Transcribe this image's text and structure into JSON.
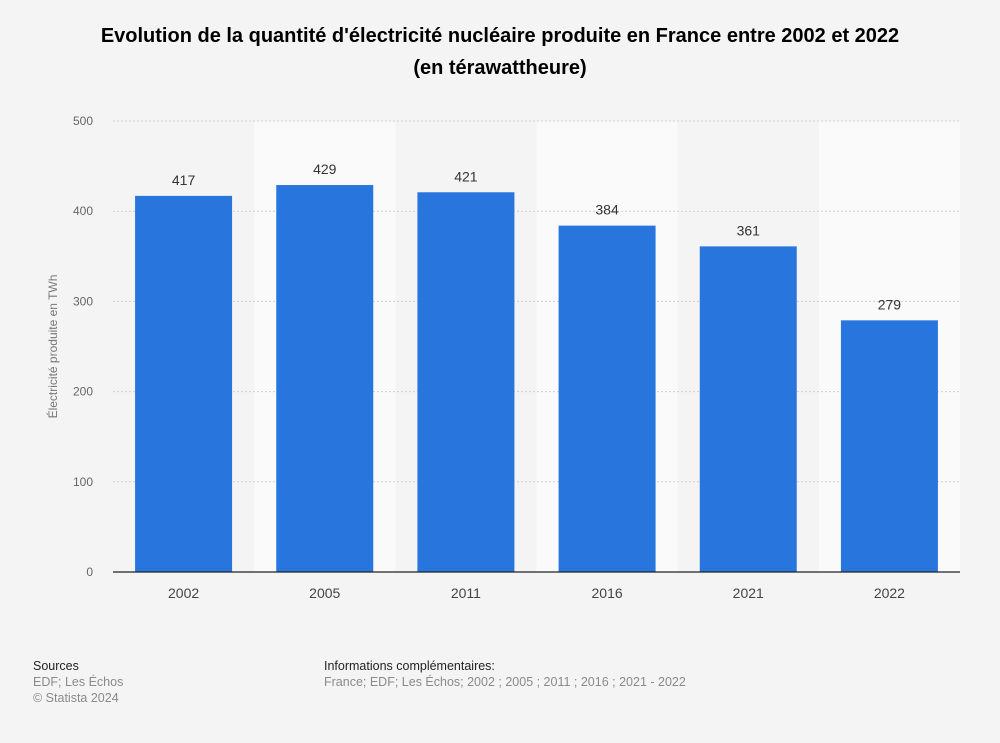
{
  "chart_data": {
    "type": "bar",
    "title": "Evolution de la quantité d'électricité nucléaire produite en France entre 2002 et 2022",
    "subtitle": "(en térawattheure)",
    "ylabel": "Électricité produite en TWh",
    "xlabel": "",
    "categories": [
      "2002",
      "2005",
      "2011",
      "2016",
      "2021",
      "2022"
    ],
    "values": [
      417,
      429,
      421,
      384,
      361,
      279
    ],
    "ylim": [
      0,
      500
    ],
    "yticks": [
      0,
      100,
      200,
      300,
      400,
      500
    ],
    "grid": true,
    "bar_color": "#2876dd",
    "data_labels": true
  },
  "footer": {
    "sources_heading": "Sources",
    "sources": "EDF; Les Échos",
    "copyright": "© Statista 2024",
    "info_heading": "Informations complémentaires:",
    "info": "France; EDF; Les Échos; 2002 ; 2005 ; 2011 ; 2016 ; 2021 - 2022"
  }
}
